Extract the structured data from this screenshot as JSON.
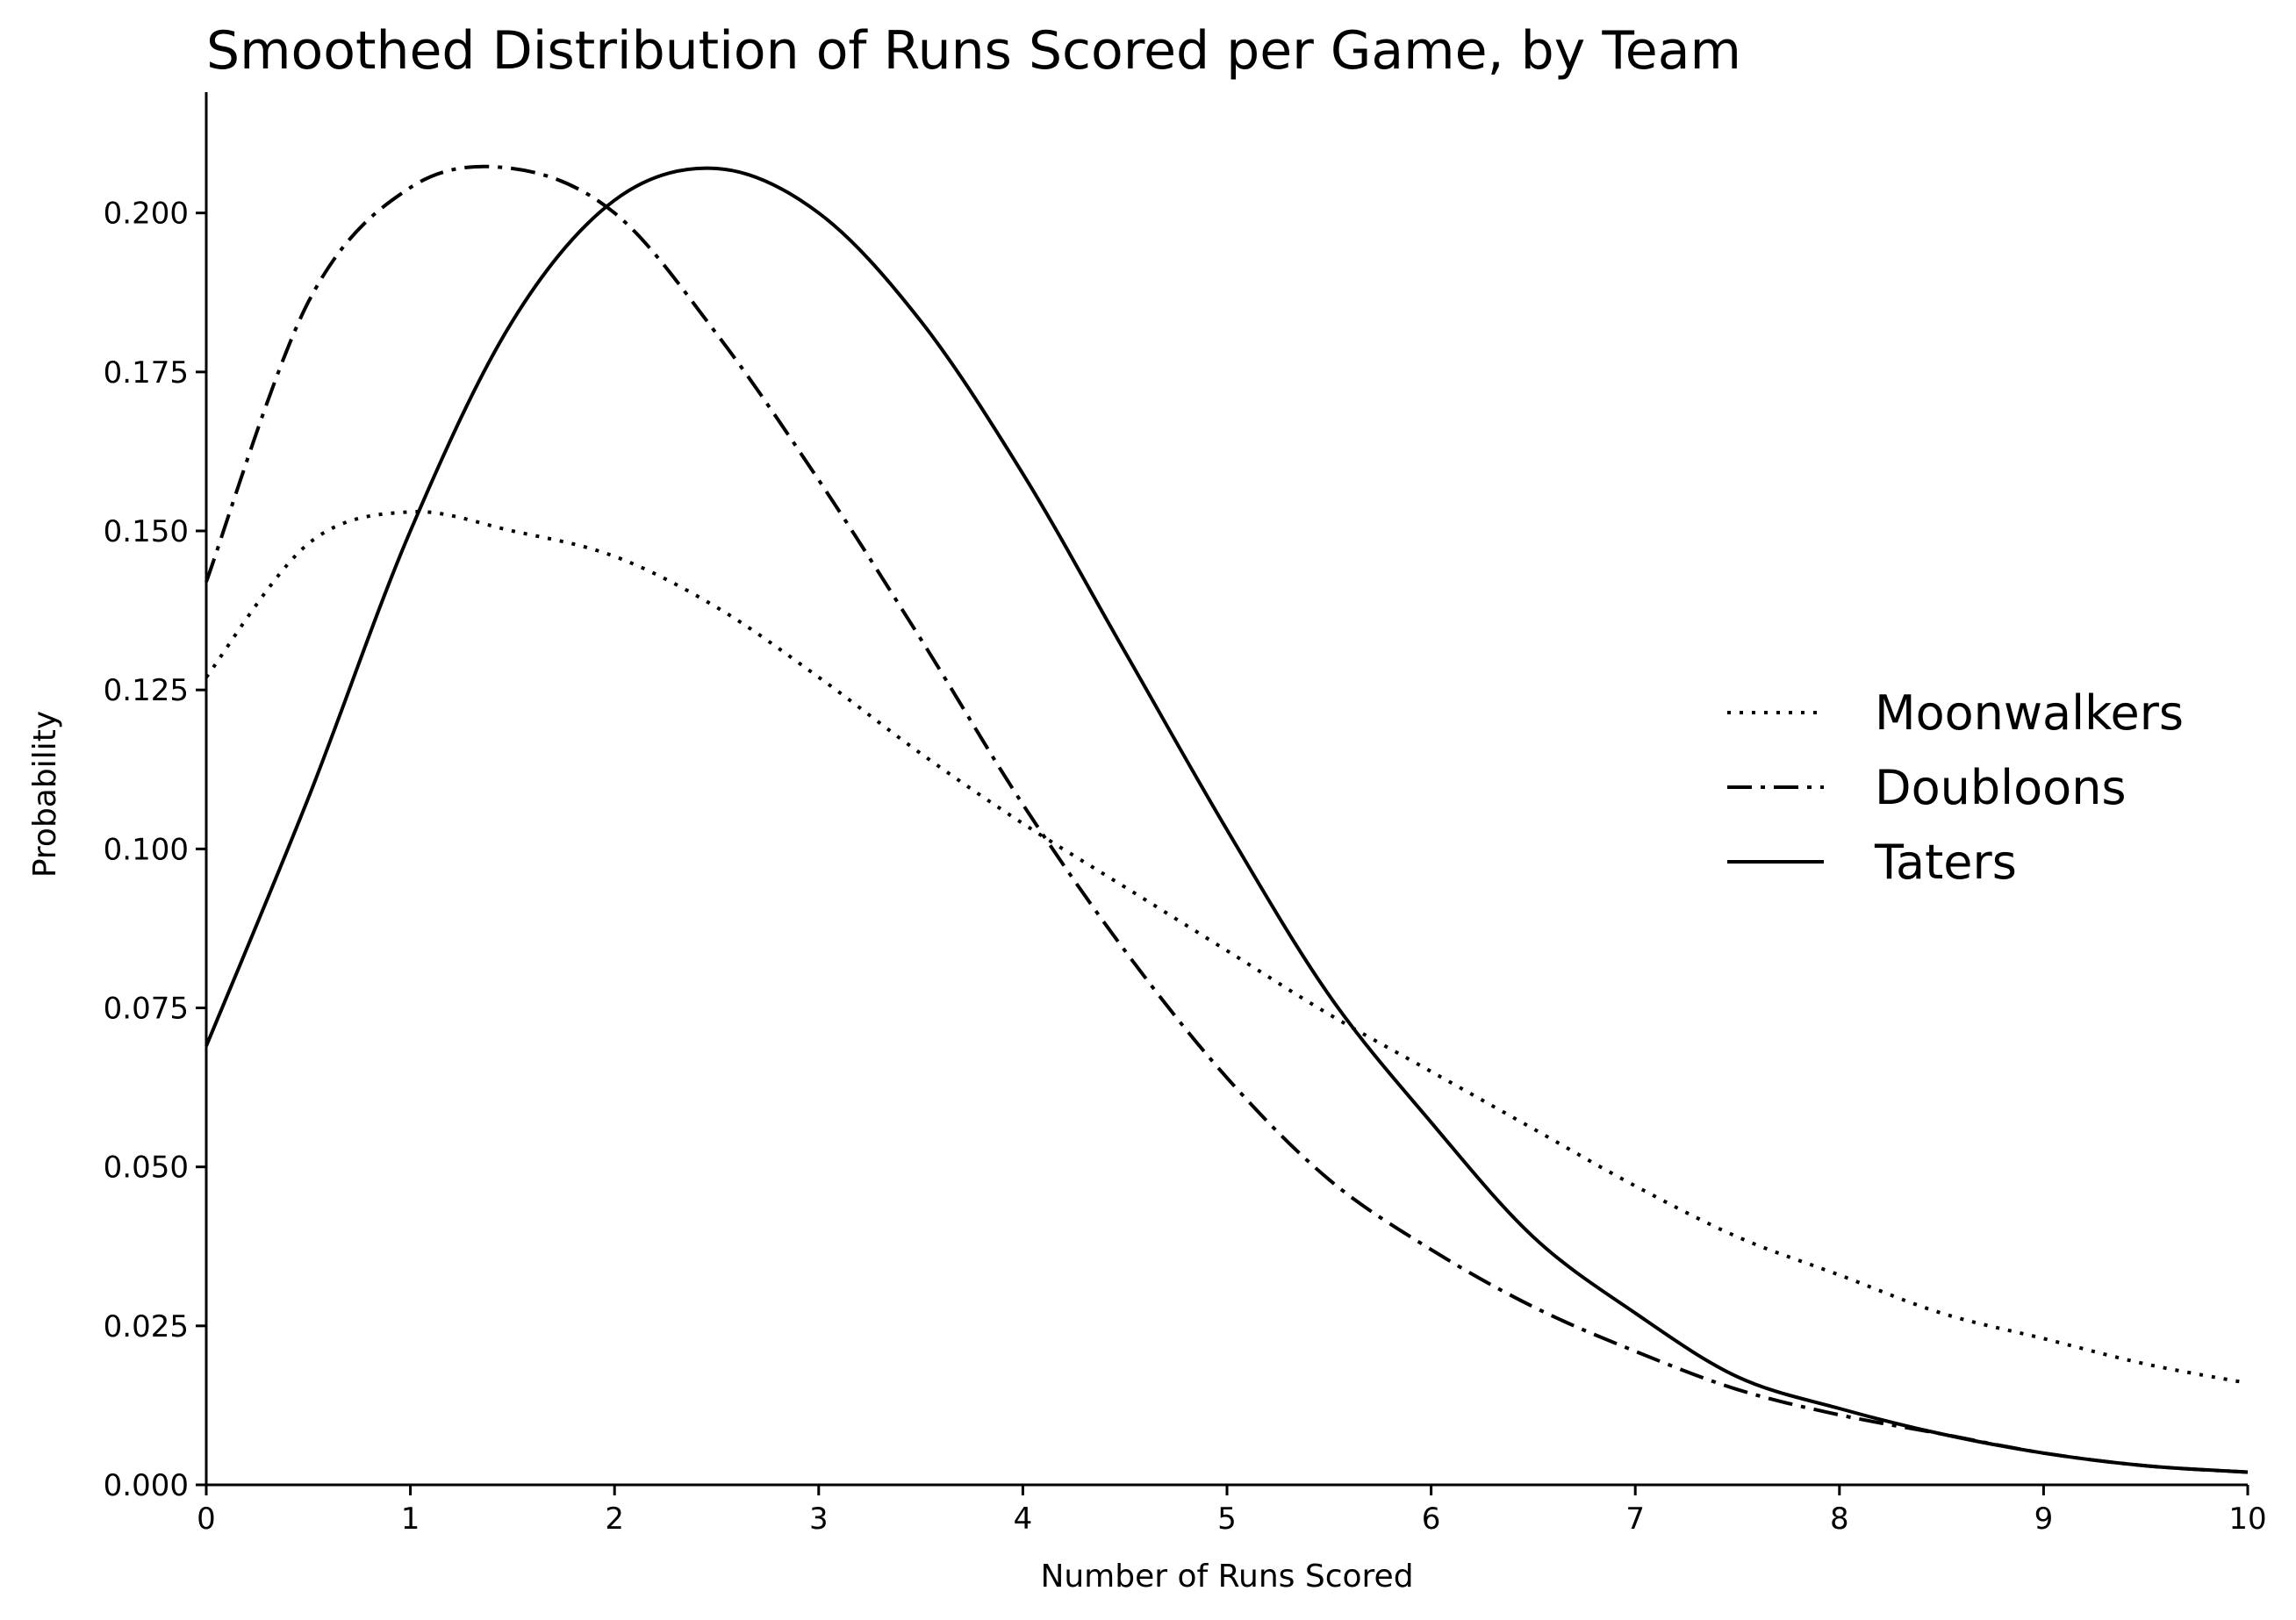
{
  "chart_data": {
    "type": "line",
    "title": "Smoothed Distribution of Runs Scored per Game, by Team",
    "xlabel": "Number of Runs Scored",
    "ylabel": "Probability",
    "xlim": [
      0,
      10
    ],
    "ylim": [
      0,
      0.219
    ],
    "x_ticks": [
      "0",
      "1",
      "2",
      "3",
      "4",
      "5",
      "6",
      "7",
      "8",
      "9",
      "10"
    ],
    "y_ticks": [
      "0.000",
      "0.025",
      "0.050",
      "0.075",
      "0.100",
      "0.125",
      "0.150",
      "0.175",
      "0.200"
    ],
    "grid": false,
    "legend_position": "center-right",
    "x": [
      0,
      0.5,
      1,
      1.5,
      2,
      2.5,
      3,
      3.5,
      4,
      4.5,
      5,
      5.5,
      6,
      6.5,
      7,
      7.5,
      8,
      8.5,
      9,
      9.5,
      10
    ],
    "series": [
      {
        "name": "Moonwalkers",
        "style": "dotted",
        "values": [
          0.127,
          0.148,
          0.153,
          0.15,
          0.146,
          0.138,
          0.127,
          0.115,
          0.104,
          0.094,
          0.084,
          0.074,
          0.065,
          0.056,
          0.047,
          0.039,
          0.033,
          0.027,
          0.023,
          0.019,
          0.016
        ]
      },
      {
        "name": "Doubloons",
        "style": "dashdot",
        "values": [
          0.142,
          0.186,
          0.204,
          0.207,
          0.2,
          0.181,
          0.158,
          0.133,
          0.107,
          0.084,
          0.064,
          0.048,
          0.037,
          0.028,
          0.021,
          0.015,
          0.011,
          0.008,
          0.005,
          0.003,
          0.002
        ]
      },
      {
        "name": "Taters",
        "style": "solid",
        "values": [
          0.069,
          0.108,
          0.15,
          0.183,
          0.202,
          0.207,
          0.2,
          0.183,
          0.159,
          0.131,
          0.103,
          0.077,
          0.057,
          0.039,
          0.027,
          0.017,
          0.012,
          0.008,
          0.005,
          0.003,
          0.002
        ]
      }
    ]
  }
}
